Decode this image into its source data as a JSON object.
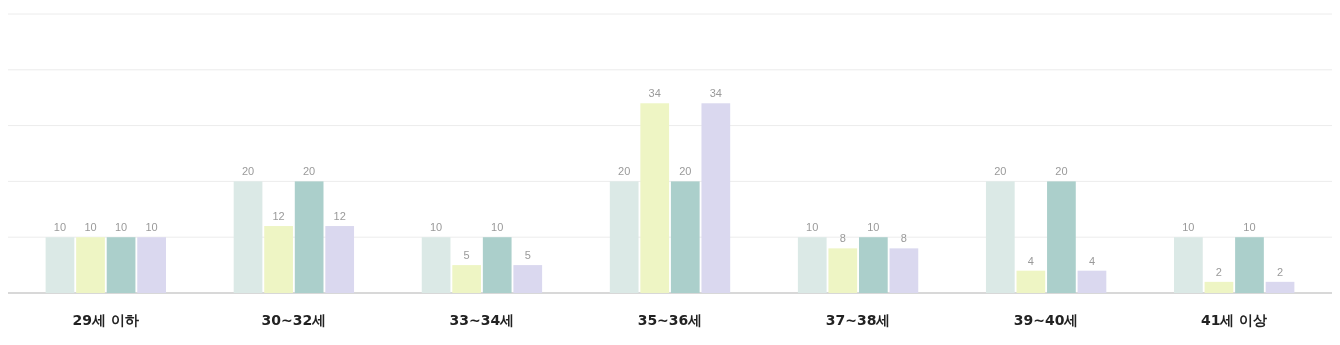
{
  "chart_data": {
    "type": "bar",
    "categories": [
      "29세 이하",
      "30~32세",
      "33~34세",
      "35~36세",
      "37~38세",
      "39~40세",
      "41세 이상"
    ],
    "series": [
      {
        "color": "#dbe9e6",
        "values": [
          10,
          20,
          10,
          20,
          10,
          20,
          10
        ]
      },
      {
        "color": "#eef5c4",
        "values": [
          10,
          12,
          5,
          34,
          8,
          4,
          2
        ]
      },
      {
        "color": "#abcfcb",
        "values": [
          10,
          20,
          10,
          20,
          10,
          20,
          10
        ]
      },
      {
        "color": "#dad8ef",
        "values": [
          10,
          12,
          5,
          34,
          8,
          4,
          2
        ]
      }
    ],
    "ylim": [
      0,
      50
    ],
    "yticks": [
      {
        "value": 0,
        "label": null
      },
      {
        "value": 10,
        "label": null
      },
      {
        "value": 20,
        "label": null
      },
      {
        "value": 30,
        "label": null
      },
      {
        "value": 40,
        "label": null
      },
      {
        "value": 50,
        "label": null
      }
    ],
    "tick_labels": "x",
    "grid": "y",
    "data_labels": true
  }
}
